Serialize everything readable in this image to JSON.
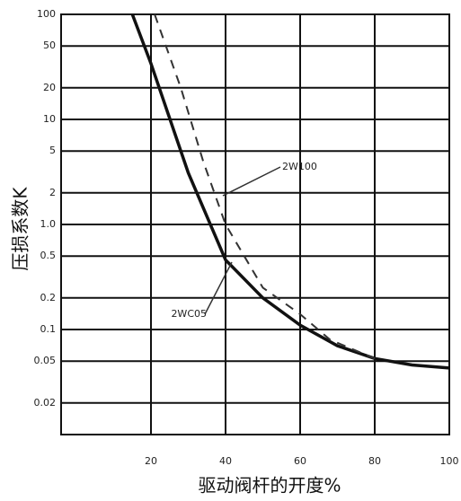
{
  "chart_data": {
    "type": "line",
    "x_label": "驱动阀杆的开度%",
    "y_label": "压损系数K",
    "log_y": true,
    "grid": true,
    "xlim": [
      0,
      100
    ],
    "xticks": [
      20,
      40,
      60,
      80,
      100
    ],
    "ylim": [
      0.01,
      100
    ],
    "yticks": [
      100,
      50,
      20,
      10,
      5,
      2,
      {
        "value": 1,
        "label": "1.0"
      },
      0.5,
      0.2,
      0.1,
      0.05,
      0.02
    ],
    "series": [
      {
        "name": "2WC05",
        "color": "#111111",
        "dash": false,
        "x": [
          15,
          20,
          30,
          40,
          50,
          60,
          70,
          80,
          90,
          100
        ],
        "values": [
          100,
          34,
          3.1,
          0.46,
          0.2,
          0.11,
          0.07,
          0.053,
          0.046,
          0.043
        ]
      },
      {
        "name": "2W100",
        "color": "#333333",
        "dash": true,
        "x": [
          21,
          28,
          34,
          40,
          50,
          60,
          68,
          80
        ],
        "values": [
          100,
          20,
          4,
          1,
          0.25,
          0.14,
          0.08,
          0.053
        ]
      }
    ]
  }
}
